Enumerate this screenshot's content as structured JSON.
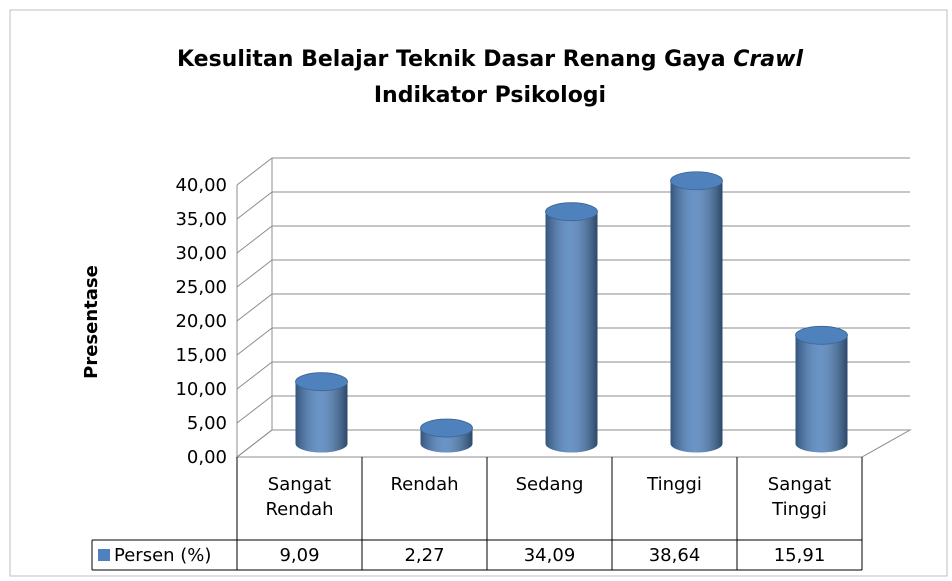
{
  "chart_data": {
    "type": "bar3d",
    "title": "Kesulitan Belajar Teknik Dasar Renang Gaya",
    "title_italic": "Crawl",
    "subtitle": "Indikator Psikologi",
    "y_label": "Presentase",
    "categories": [
      "Sangat Rendah",
      "Rendah",
      "Sedang",
      "Tinggi",
      "Sangat Tinggi"
    ],
    "series": [
      {
        "name": "Persen (%)",
        "color": "#4f81bd",
        "values": [
          9.09,
          2.27,
          34.09,
          38.64,
          15.91
        ],
        "value_labels": [
          "9,09",
          "2,27",
          "34,09",
          "38,64",
          "15,91"
        ]
      }
    ],
    "ylim": [
      0,
      40
    ],
    "yticks": [
      {
        "value": 0,
        "label": "0,00"
      },
      {
        "value": 5,
        "label": "5,00"
      },
      {
        "value": 10,
        "label": "10,00"
      },
      {
        "value": 15,
        "label": "15,00"
      },
      {
        "value": 20,
        "label": "20,00"
      },
      {
        "value": 25,
        "label": "25,00"
      },
      {
        "value": 30,
        "label": "30,00"
      },
      {
        "value": 35,
        "label": "35,00"
      },
      {
        "value": 40,
        "label": "40,00"
      }
    ],
    "grid": true,
    "data_table": true
  }
}
